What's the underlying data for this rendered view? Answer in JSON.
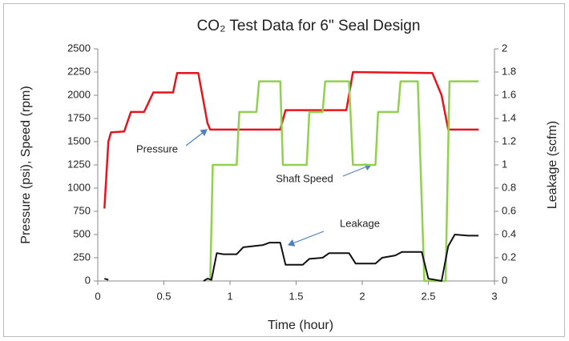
{
  "chart_data": {
    "type": "line",
    "title": "CO₂ Test Data for 6\" Seal Design",
    "x_label": "Time (hour)",
    "y_label": "Pressure (psi), Speed (rpm)",
    "y2_label": "Leakage (scfm)",
    "xlim": [
      0,
      3
    ],
    "xticks": [
      0,
      0.5,
      1,
      1.5,
      2,
      2.5,
      3
    ],
    "ylim": [
      0,
      2500
    ],
    "yticks": [
      0,
      250,
      500,
      750,
      1000,
      1250,
      1500,
      1750,
      2000,
      2250,
      2500
    ],
    "y2lim": [
      0,
      2
    ],
    "y2ticks": [
      0,
      0.2,
      0.4,
      0.6,
      0.8,
      1,
      1.2,
      1.4,
      1.6,
      1.8,
      2
    ],
    "annotations": [
      "Pressure",
      "Shaft Speed",
      "Leakage"
    ],
    "series": [
      {
        "name": "Pressure",
        "color": "#e8141b",
        "x": [
          0.05,
          0.08,
          0.1,
          0.2,
          0.25,
          0.35,
          0.42,
          0.57,
          0.6,
          0.76,
          0.83,
          0.85,
          1.38,
          1.42,
          1.88,
          1.93,
          2.53,
          2.6,
          2.65,
          2.88
        ],
        "values": [
          780,
          1500,
          1600,
          1610,
          1820,
          1820,
          2030,
          2030,
          2240,
          2240,
          1700,
          1630,
          1630,
          1840,
          1840,
          2250,
          2240,
          2000,
          1630,
          1630
        ]
      },
      {
        "name": "Shaft Speed",
        "color": "#92d050",
        "x": [
          0.85,
          0.87,
          1.05,
          1.07,
          1.2,
          1.22,
          1.38,
          1.4,
          1.58,
          1.6,
          1.7,
          1.72,
          1.9,
          1.93,
          2.1,
          2.12,
          2.27,
          2.29,
          2.42,
          2.47,
          2.63,
          2.66,
          2.88
        ],
        "values": [
          0,
          1250,
          1250,
          1820,
          1820,
          2150,
          2150,
          1250,
          1250,
          1820,
          1820,
          2150,
          2150,
          1250,
          1250,
          1820,
          1820,
          2150,
          2150,
          0,
          0,
          2150,
          2150
        ]
      },
      {
        "name": "Leakage",
        "color": "#111111",
        "axis": "y2",
        "x": [
          0.05,
          0.08,
          0.5,
          0.8,
          0.83,
          0.86,
          0.9,
          0.95,
          1.05,
          1.1,
          1.25,
          1.3,
          1.38,
          1.42,
          1.55,
          1.6,
          1.7,
          1.75,
          1.9,
          1.95,
          2.1,
          2.15,
          2.25,
          2.3,
          2.45,
          2.5,
          2.6,
          2.65,
          2.7,
          2.8,
          2.88
        ],
        "values": [
          0.02,
          0.01,
          null,
          0,
          0.02,
          0.01,
          0.24,
          0.23,
          0.23,
          0.29,
          0.31,
          0.33,
          0.33,
          0.14,
          0.14,
          0.19,
          0.2,
          0.24,
          0.24,
          0.15,
          0.15,
          0.2,
          0.22,
          0.25,
          0.25,
          0.02,
          0,
          0.3,
          0.4,
          0.39,
          0.39
        ]
      }
    ]
  }
}
